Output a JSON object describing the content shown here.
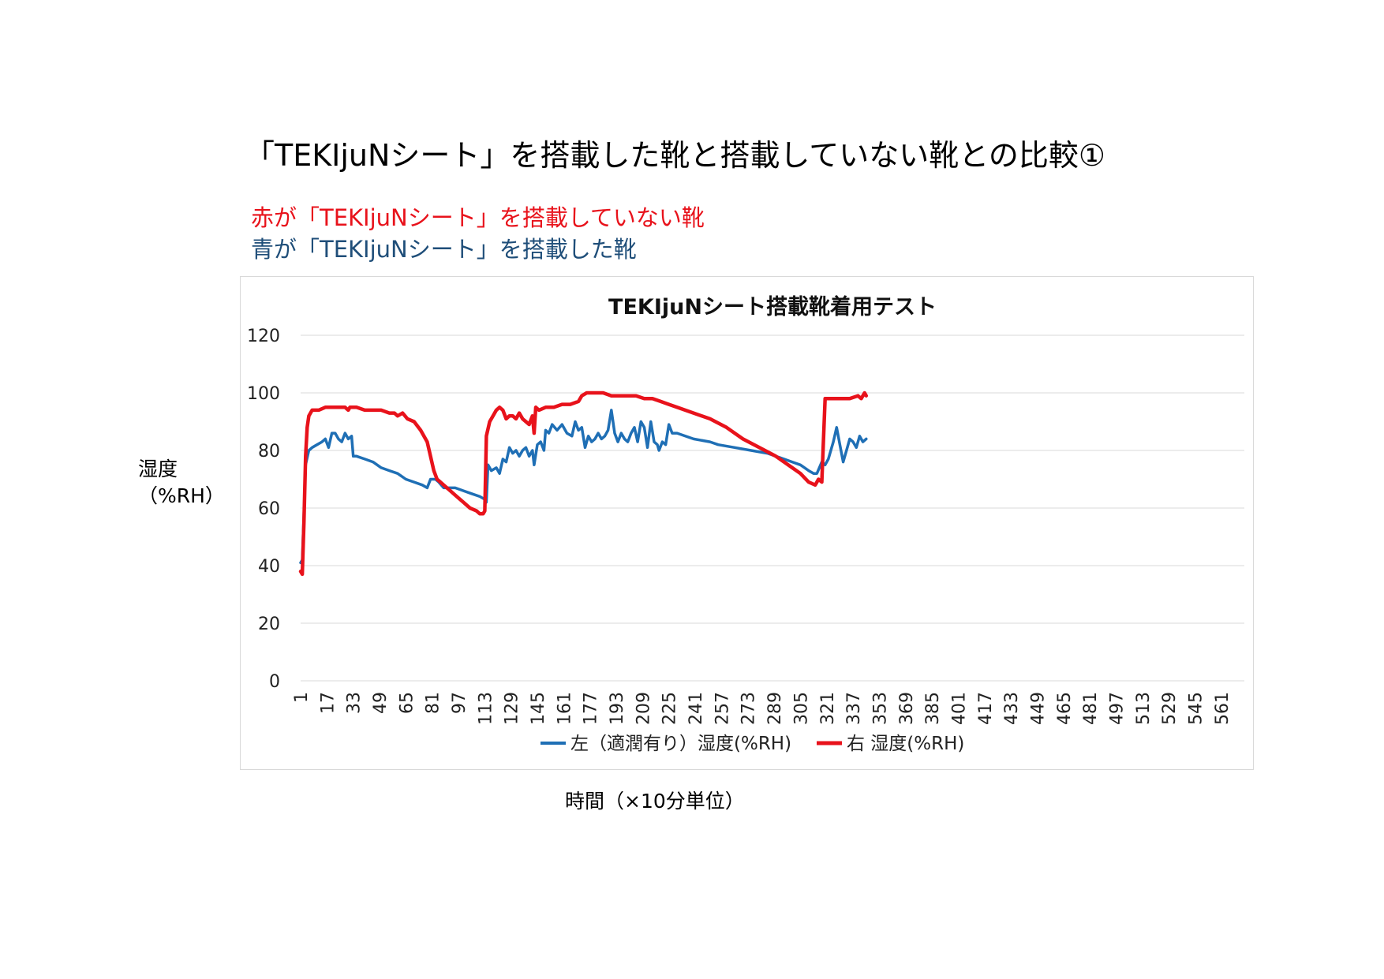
{
  "page": {
    "title": "「TEKIjuNシート」を搭載した靴と搭載していない靴との比較①",
    "note_red": "赤が「TEKIjuNシート」を搭載していない靴",
    "note_blue": "青が「TEKIjuNシート」を搭載した靴",
    "ylabel_line1": "湿度",
    "ylabel_line2": "（%RH）",
    "xlabel": "時間（×10分単位）"
  },
  "colors": {
    "red": "#e8121b",
    "blue": "#1f6fb5",
    "note_blue": "#1f4e79",
    "grid": "#d9d9d9"
  },
  "chart_data": {
    "type": "line",
    "title": "TEKIjuNシート搭載靴着用テスト",
    "xlabel": "時間（×10分単位）",
    "ylabel": "湿度（%RH）",
    "ylim": [
      0,
      120
    ],
    "yticks": [
      0,
      20,
      40,
      60,
      80,
      100,
      120
    ],
    "x_range": [
      1,
      575
    ],
    "x_tick_labels": [
      "1",
      "17",
      "33",
      "49",
      "65",
      "81",
      "97",
      "113",
      "129",
      "145",
      "161",
      "177",
      "193",
      "209",
      "225",
      "241",
      "257",
      "273",
      "289",
      "305",
      "321",
      "337",
      "353",
      "369",
      "385",
      "401",
      "417",
      "433",
      "449",
      "465",
      "481",
      "497",
      "513",
      "529",
      "545",
      "561"
    ],
    "grid": "horizontal",
    "legend_position": "bottom",
    "series": [
      {
        "name": "左（適潤有り）湿度(%RH)",
        "color": "#1f6fb5",
        "points": [
          [
            1,
            41
          ],
          [
            2,
            42
          ],
          [
            4,
            75
          ],
          [
            6,
            80
          ],
          [
            8,
            81
          ],
          [
            11,
            82
          ],
          [
            14,
            83
          ],
          [
            16,
            84
          ],
          [
            18,
            81
          ],
          [
            20,
            86
          ],
          [
            22,
            86
          ],
          [
            24,
            84
          ],
          [
            26,
            83
          ],
          [
            28,
            86
          ],
          [
            30,
            84
          ],
          [
            32,
            85
          ],
          [
            33,
            78
          ],
          [
            35,
            78
          ],
          [
            40,
            77
          ],
          [
            45,
            76
          ],
          [
            50,
            74
          ],
          [
            55,
            73
          ],
          [
            60,
            72
          ],
          [
            65,
            70
          ],
          [
            70,
            69
          ],
          [
            75,
            68
          ],
          [
            78,
            67
          ],
          [
            80,
            70
          ],
          [
            83,
            70
          ],
          [
            85,
            69
          ],
          [
            88,
            67
          ],
          [
            90,
            67
          ],
          [
            95,
            67
          ],
          [
            100,
            66
          ],
          [
            105,
            65
          ],
          [
            110,
            64
          ],
          [
            113,
            63
          ],
          [
            114,
            62
          ],
          [
            115,
            75
          ],
          [
            117,
            73
          ],
          [
            120,
            74
          ],
          [
            122,
            72
          ],
          [
            124,
            77
          ],
          [
            126,
            76
          ],
          [
            128,
            81
          ],
          [
            130,
            79
          ],
          [
            132,
            80
          ],
          [
            134,
            78
          ],
          [
            136,
            80
          ],
          [
            138,
            81
          ],
          [
            140,
            78
          ],
          [
            142,
            80
          ],
          [
            143,
            75
          ],
          [
            145,
            82
          ],
          [
            147,
            83
          ],
          [
            149,
            80
          ],
          [
            150,
            87
          ],
          [
            152,
            86
          ],
          [
            154,
            89
          ],
          [
            157,
            87
          ],
          [
            160,
            89
          ],
          [
            163,
            86
          ],
          [
            166,
            85
          ],
          [
            168,
            90
          ],
          [
            170,
            87
          ],
          [
            172,
            88
          ],
          [
            174,
            81
          ],
          [
            176,
            85
          ],
          [
            178,
            83
          ],
          [
            180,
            84
          ],
          [
            182,
            86
          ],
          [
            184,
            84
          ],
          [
            186,
            85
          ],
          [
            188,
            87
          ],
          [
            190,
            94
          ],
          [
            192,
            86
          ],
          [
            194,
            83
          ],
          [
            196,
            86
          ],
          [
            198,
            84
          ],
          [
            200,
            83
          ],
          [
            202,
            86
          ],
          [
            204,
            88
          ],
          [
            206,
            83
          ],
          [
            208,
            90
          ],
          [
            210,
            88
          ],
          [
            212,
            81
          ],
          [
            214,
            90
          ],
          [
            216,
            83
          ],
          [
            218,
            82
          ],
          [
            219,
            80
          ],
          [
            221,
            83
          ],
          [
            223,
            82
          ],
          [
            225,
            89
          ],
          [
            227,
            86
          ],
          [
            230,
            86
          ],
          [
            240,
            84
          ],
          [
            250,
            83
          ],
          [
            255,
            82
          ],
          [
            265,
            81
          ],
          [
            275,
            80
          ],
          [
            285,
            79
          ],
          [
            290,
            78
          ],
          [
            295,
            77
          ],
          [
            300,
            76
          ],
          [
            305,
            75
          ],
          [
            310,
            73
          ],
          [
            313,
            72
          ],
          [
            315,
            72
          ],
          [
            318,
            76
          ],
          [
            320,
            75
          ],
          [
            322,
            77
          ],
          [
            325,
            83
          ],
          [
            327,
            88
          ],
          [
            329,
            82
          ],
          [
            331,
            76
          ],
          [
            333,
            80
          ],
          [
            335,
            84
          ],
          [
            337,
            83
          ],
          [
            339,
            81
          ],
          [
            341,
            85
          ],
          [
            343,
            83
          ],
          [
            345,
            84
          ]
        ]
      },
      {
        "name": "右 湿度(%RH)",
        "color": "#e8121b",
        "points": [
          [
            1,
            38
          ],
          [
            2,
            37
          ],
          [
            3,
            55
          ],
          [
            4,
            78
          ],
          [
            5,
            88
          ],
          [
            6,
            92
          ],
          [
            8,
            94
          ],
          [
            12,
            94
          ],
          [
            16,
            95
          ],
          [
            22,
            95
          ],
          [
            28,
            95
          ],
          [
            30,
            94
          ],
          [
            31,
            95
          ],
          [
            35,
            95
          ],
          [
            40,
            94
          ],
          [
            45,
            94
          ],
          [
            50,
            94
          ],
          [
            55,
            93
          ],
          [
            58,
            93
          ],
          [
            60,
            92
          ],
          [
            63,
            93
          ],
          [
            66,
            91
          ],
          [
            70,
            90
          ],
          [
            74,
            87
          ],
          [
            78,
            83
          ],
          [
            80,
            78
          ],
          [
            82,
            73
          ],
          [
            84,
            70
          ],
          [
            86,
            69
          ],
          [
            88,
            68
          ],
          [
            92,
            66
          ],
          [
            96,
            64
          ],
          [
            100,
            62
          ],
          [
            104,
            60
          ],
          [
            108,
            59
          ],
          [
            110,
            58
          ],
          [
            112,
            58
          ],
          [
            113,
            59
          ],
          [
            114,
            85
          ],
          [
            116,
            90
          ],
          [
            118,
            92
          ],
          [
            120,
            94
          ],
          [
            122,
            95
          ],
          [
            124,
            94
          ],
          [
            126,
            91
          ],
          [
            128,
            92
          ],
          [
            130,
            92
          ],
          [
            132,
            91
          ],
          [
            134,
            93
          ],
          [
            136,
            91
          ],
          [
            138,
            90
          ],
          [
            140,
            89
          ],
          [
            142,
            92
          ],
          [
            143,
            86
          ],
          [
            144,
            95
          ],
          [
            146,
            94
          ],
          [
            150,
            95
          ],
          [
            155,
            95
          ],
          [
            160,
            96
          ],
          [
            165,
            96
          ],
          [
            170,
            97
          ],
          [
            172,
            99
          ],
          [
            175,
            100
          ],
          [
            180,
            100
          ],
          [
            185,
            100
          ],
          [
            190,
            99
          ],
          [
            195,
            99
          ],
          [
            200,
            99
          ],
          [
            205,
            99
          ],
          [
            210,
            98
          ],
          [
            215,
            98
          ],
          [
            220,
            97
          ],
          [
            225,
            96
          ],
          [
            230,
            95
          ],
          [
            240,
            93
          ],
          [
            250,
            91
          ],
          [
            260,
            88
          ],
          [
            270,
            84
          ],
          [
            280,
            81
          ],
          [
            290,
            78
          ],
          [
            300,
            74
          ],
          [
            305,
            72
          ],
          [
            310,
            69
          ],
          [
            314,
            68
          ],
          [
            316,
            70
          ],
          [
            318,
            69
          ],
          [
            320,
            98
          ],
          [
            322,
            98
          ],
          [
            325,
            98
          ],
          [
            330,
            98
          ],
          [
            335,
            98
          ],
          [
            340,
            99
          ],
          [
            342,
            98
          ],
          [
            344,
            100
          ],
          [
            345,
            99
          ]
        ]
      }
    ]
  }
}
